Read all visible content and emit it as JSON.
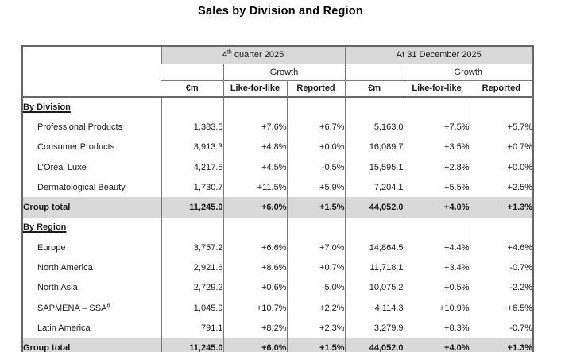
{
  "title": "Sales by Division and Region",
  "colors": {
    "header_bg": "#d9d9d9",
    "total_row_bg": "#d9d9d9",
    "border": "#7a7a7a",
    "outer_border": "#666666",
    "text": "#1a1a1a"
  },
  "table": {
    "period_q4": {
      "pre": "4",
      "sup": "th",
      "post": " quarter 2025"
    },
    "period_fy": "At 31 December 2025",
    "growth": "Growth",
    "unit": "€m",
    "like_for_like": "Like-for-like",
    "reported": "Reported",
    "rows": [
      {
        "type": "section",
        "label": "By Division"
      },
      {
        "type": "data",
        "label": "Professional Products",
        "values": [
          "1,383.5",
          "+7.6%",
          "+6.7%",
          "5,163.0",
          "+7.5%",
          "+5.7%"
        ]
      },
      {
        "type": "data",
        "label": "Consumer Products",
        "values": [
          "3,913.3",
          "+4.8%",
          "+0.0%",
          "16,089.7",
          "+3.5%",
          "+0.7%"
        ]
      },
      {
        "type": "data",
        "label": "L’Oréal Luxe",
        "values": [
          "4,217.5",
          "+4.5%",
          "-0.5%",
          "15,595.1",
          "+2.8%",
          "+0.0%"
        ]
      },
      {
        "type": "data",
        "label": "Dermatological Beauty",
        "values": [
          "1,730.7",
          "+11.5%",
          "+5.9%",
          "7,204.1",
          "+5.5%",
          "+2.5%"
        ]
      },
      {
        "type": "total",
        "label": "Group total",
        "values": [
          "11,245.0",
          "+6.0%",
          "+1.5%",
          "44,052.0",
          "+4.0%",
          "+1.3%"
        ]
      },
      {
        "type": "section",
        "label": "By Region"
      },
      {
        "type": "data",
        "label": "Europe",
        "values": [
          "3,757.2",
          "+6.6%",
          "+7.0%",
          "14,864.5",
          "+4.4%",
          "+4.6%"
        ]
      },
      {
        "type": "data",
        "label": "North America",
        "values": [
          "2,921.6",
          "+8.6%",
          "+0.7%",
          "11,718.1",
          "+3.4%",
          "-0.7%"
        ]
      },
      {
        "type": "data",
        "label": "North Asia",
        "values": [
          "2,729.2",
          "+0.6%",
          "-5.0%",
          "10,075.2",
          "+0.5%",
          "-2.2%"
        ]
      },
      {
        "type": "data",
        "label": "SAPMENA – SSA",
        "label_sup": "6",
        "values": [
          "1,045.9",
          "+10.7%",
          "+2.2%",
          "4,114.3",
          "+10.9%",
          "+6.5%"
        ]
      },
      {
        "type": "data",
        "label": "Latin America",
        "values": [
          "791.1",
          "+8.2%",
          "+2.3%",
          "3,279.9",
          "+8.3%",
          "-0.7%"
        ]
      },
      {
        "type": "total",
        "label": "Group total",
        "values": [
          "11,245.0",
          "+6.0%",
          "+1.5%",
          "44,052.0",
          "+4.0%",
          "+1.3%"
        ]
      }
    ]
  }
}
